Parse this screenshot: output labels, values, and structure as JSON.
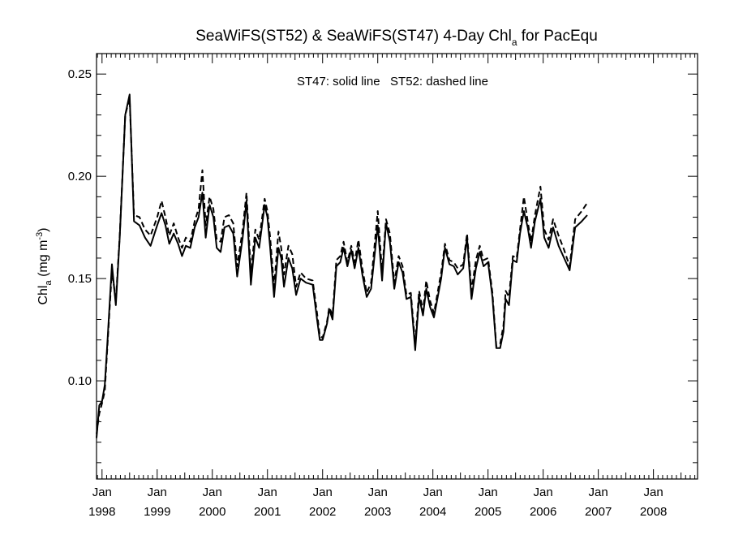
{
  "chart_data": {
    "type": "line",
    "title": {
      "main": "SeaWiFS(ST52) & SeaWiFS(ST47) 4-Day Chl",
      "sub": "a",
      "tail": " for PacEqu"
    },
    "annotation": "ST47: solid line   ST52: dashed line",
    "ylabel": {
      "main": "Chl",
      "sub": "a",
      "unit_open": " (mg m",
      "unit_sup": "-3",
      "unit_close": ")"
    },
    "xlim": [
      1997.9,
      2008.8
    ],
    "ylim": [
      0.052,
      0.26
    ],
    "grid": false,
    "x_ticks": [
      {
        "x": 1998,
        "month": "Jan",
        "year": "1998"
      },
      {
        "x": 1999,
        "month": "Jan",
        "year": "1999"
      },
      {
        "x": 2000,
        "month": "Jan",
        "year": "2000"
      },
      {
        "x": 2001,
        "month": "Jan",
        "year": "2001"
      },
      {
        "x": 2002,
        "month": "Jan",
        "year": "2002"
      },
      {
        "x": 2003,
        "month": "Jan",
        "year": "2003"
      },
      {
        "x": 2004,
        "month": "Jan",
        "year": "2004"
      },
      {
        "x": 2005,
        "month": "Jan",
        "year": "2005"
      },
      {
        "x": 2006,
        "month": "Jan",
        "year": "2006"
      },
      {
        "x": 2007,
        "month": "Jan",
        "year": "2007"
      },
      {
        "x": 2008,
        "month": "Jan",
        "year": "2008"
      }
    ],
    "y_major": [
      {
        "y": 0.1,
        "label": "0.10"
      },
      {
        "y": 0.15,
        "label": "0.15"
      },
      {
        "y": 0.2,
        "label": "0.20"
      },
      {
        "y": 0.25,
        "label": "0.25"
      }
    ],
    "y_minor": [
      0.06,
      0.07,
      0.08,
      0.09,
      0.11,
      0.12,
      0.13,
      0.14,
      0.16,
      0.17,
      0.18,
      0.19,
      0.21,
      0.22,
      0.23,
      0.24
    ],
    "series": [
      {
        "name": "ST47",
        "style": "solid",
        "points": [
          [
            1997.9,
            0.072
          ],
          [
            1997.95,
            0.088
          ],
          [
            1998.0,
            0.09
          ],
          [
            1998.05,
            0.098
          ],
          [
            1998.1,
            0.12
          ],
          [
            1998.18,
            0.157
          ],
          [
            1998.25,
            0.137
          ],
          [
            1998.32,
            0.17
          ],
          [
            1998.42,
            0.23
          ],
          [
            1998.5,
            0.24
          ],
          [
            1998.58,
            0.178
          ],
          [
            1998.68,
            0.176
          ],
          [
            1998.78,
            0.17
          ],
          [
            1998.88,
            0.166
          ],
          [
            1999.0,
            0.176
          ],
          [
            1999.08,
            0.182
          ],
          [
            1999.15,
            0.176
          ],
          [
            1999.22,
            0.167
          ],
          [
            1999.3,
            0.172
          ],
          [
            1999.38,
            0.167
          ],
          [
            1999.45,
            0.161
          ],
          [
            1999.52,
            0.166
          ],
          [
            1999.6,
            0.165
          ],
          [
            1999.68,
            0.175
          ],
          [
            1999.75,
            0.18
          ],
          [
            1999.82,
            0.192
          ],
          [
            1999.88,
            0.17
          ],
          [
            1999.95,
            0.186
          ],
          [
            2000.02,
            0.18
          ],
          [
            2000.08,
            0.165
          ],
          [
            2000.15,
            0.163
          ],
          [
            2000.22,
            0.175
          ],
          [
            2000.3,
            0.176
          ],
          [
            2000.38,
            0.172
          ],
          [
            2000.45,
            0.151
          ],
          [
            2000.55,
            0.17
          ],
          [
            2000.62,
            0.188
          ],
          [
            2000.7,
            0.147
          ],
          [
            2000.78,
            0.17
          ],
          [
            2000.85,
            0.165
          ],
          [
            2000.95,
            0.186
          ],
          [
            2001.0,
            0.18
          ],
          [
            2001.05,
            0.165
          ],
          [
            2001.12,
            0.141
          ],
          [
            2001.2,
            0.165
          ],
          [
            2001.25,
            0.16
          ],
          [
            2001.3,
            0.146
          ],
          [
            2001.38,
            0.16
          ],
          [
            2001.45,
            0.155
          ],
          [
            2001.52,
            0.142
          ],
          [
            2001.6,
            0.15
          ],
          [
            2001.7,
            0.148
          ],
          [
            2001.82,
            0.147
          ],
          [
            2001.9,
            0.13
          ],
          [
            2001.95,
            0.12
          ],
          [
            2002.0,
            0.12
          ],
          [
            2002.08,
            0.128
          ],
          [
            2002.12,
            0.135
          ],
          [
            2002.18,
            0.13
          ],
          [
            2002.25,
            0.156
          ],
          [
            2002.32,
            0.158
          ],
          [
            2002.38,
            0.165
          ],
          [
            2002.45,
            0.156
          ],
          [
            2002.52,
            0.164
          ],
          [
            2002.58,
            0.155
          ],
          [
            2002.65,
            0.165
          ],
          [
            2002.72,
            0.152
          ],
          [
            2002.8,
            0.141
          ],
          [
            2002.88,
            0.145
          ],
          [
            2003.0,
            0.176
          ],
          [
            2003.08,
            0.149
          ],
          [
            2003.15,
            0.177
          ],
          [
            2003.22,
            0.168
          ],
          [
            2003.3,
            0.145
          ],
          [
            2003.38,
            0.158
          ],
          [
            2003.45,
            0.153
          ],
          [
            2003.52,
            0.14
          ],
          [
            2003.6,
            0.141
          ],
          [
            2003.68,
            0.115
          ],
          [
            2003.75,
            0.141
          ],
          [
            2003.82,
            0.132
          ],
          [
            2003.88,
            0.145
          ],
          [
            2003.95,
            0.136
          ],
          [
            2004.02,
            0.131
          ],
          [
            2004.15,
            0.15
          ],
          [
            2004.22,
            0.165
          ],
          [
            2004.3,
            0.157
          ],
          [
            2004.38,
            0.156
          ],
          [
            2004.45,
            0.152
          ],
          [
            2004.55,
            0.155
          ],
          [
            2004.62,
            0.17
          ],
          [
            2004.7,
            0.14
          ],
          [
            2004.78,
            0.155
          ],
          [
            2004.85,
            0.163
          ],
          [
            2004.92,
            0.156
          ],
          [
            2005.0,
            0.158
          ],
          [
            2005.08,
            0.141
          ],
          [
            2005.15,
            0.116
          ],
          [
            2005.22,
            0.116
          ],
          [
            2005.28,
            0.124
          ],
          [
            2005.32,
            0.14
          ],
          [
            2005.38,
            0.137
          ],
          [
            2005.45,
            0.159
          ],
          [
            2005.52,
            0.158
          ],
          [
            2005.58,
            0.172
          ],
          [
            2005.65,
            0.183
          ],
          [
            2005.72,
            0.175
          ],
          [
            2005.78,
            0.165
          ],
          [
            2005.85,
            0.178
          ],
          [
            2005.95,
            0.189
          ],
          [
            2006.02,
            0.17
          ],
          [
            2006.1,
            0.165
          ],
          [
            2006.18,
            0.175
          ],
          [
            2006.28,
            0.166
          ],
          [
            2006.38,
            0.16
          ],
          [
            2006.48,
            0.154
          ],
          [
            2006.58,
            0.175
          ],
          [
            2006.7,
            0.178
          ],
          [
            2006.8,
            0.181
          ]
        ]
      },
      {
        "name": "ST52",
        "style": "dashed",
        "points": [
          [
            1997.9,
            0.074
          ],
          [
            1997.95,
            0.084
          ],
          [
            1998.0,
            0.089
          ],
          [
            1998.05,
            0.095
          ],
          [
            1998.1,
            0.118
          ],
          [
            1998.18,
            0.154
          ],
          [
            1998.25,
            0.139
          ],
          [
            1998.32,
            0.171
          ],
          [
            1998.42,
            0.23
          ],
          [
            1998.5,
            0.238
          ],
          [
            1998.58,
            0.181
          ],
          [
            1998.68,
            0.18
          ],
          [
            1998.78,
            0.174
          ],
          [
            1998.88,
            0.171
          ],
          [
            1999.0,
            0.18
          ],
          [
            1999.08,
            0.188
          ],
          [
            1999.15,
            0.18
          ],
          [
            1999.22,
            0.171
          ],
          [
            1999.3,
            0.177
          ],
          [
            1999.38,
            0.17
          ],
          [
            1999.45,
            0.165
          ],
          [
            1999.52,
            0.17
          ],
          [
            1999.6,
            0.168
          ],
          [
            1999.68,
            0.178
          ],
          [
            1999.75,
            0.184
          ],
          [
            1999.82,
            0.203
          ],
          [
            1999.88,
            0.176
          ],
          [
            1999.95,
            0.19
          ],
          [
            2000.02,
            0.184
          ],
          [
            2000.08,
            0.169
          ],
          [
            2000.15,
            0.168
          ],
          [
            2000.22,
            0.18
          ],
          [
            2000.3,
            0.181
          ],
          [
            2000.38,
            0.177
          ],
          [
            2000.45,
            0.156
          ],
          [
            2000.55,
            0.174
          ],
          [
            2000.62,
            0.192
          ],
          [
            2000.7,
            0.153
          ],
          [
            2000.78,
            0.174
          ],
          [
            2000.85,
            0.169
          ],
          [
            2000.95,
            0.189
          ],
          [
            2001.0,
            0.183
          ],
          [
            2001.05,
            0.17
          ],
          [
            2001.12,
            0.146
          ],
          [
            2001.2,
            0.173
          ],
          [
            2001.25,
            0.165
          ],
          [
            2001.3,
            0.152
          ],
          [
            2001.38,
            0.166
          ],
          [
            2001.45,
            0.162
          ],
          [
            2001.52,
            0.146
          ],
          [
            2001.6,
            0.153
          ],
          [
            2001.7,
            0.15
          ],
          [
            2001.82,
            0.149
          ],
          [
            2001.9,
            0.133
          ],
          [
            2001.95,
            0.122
          ],
          [
            2002.0,
            0.121
          ],
          [
            2002.08,
            0.129
          ],
          [
            2002.12,
            0.136
          ],
          [
            2002.18,
            0.132
          ],
          [
            2002.25,
            0.159
          ],
          [
            2002.32,
            0.161
          ],
          [
            2002.38,
            0.168
          ],
          [
            2002.45,
            0.158
          ],
          [
            2002.52,
            0.166
          ],
          [
            2002.58,
            0.158
          ],
          [
            2002.65,
            0.169
          ],
          [
            2002.72,
            0.155
          ],
          [
            2002.8,
            0.143
          ],
          [
            2002.88,
            0.148
          ],
          [
            2003.0,
            0.183
          ],
          [
            2003.08,
            0.153
          ],
          [
            2003.15,
            0.179
          ],
          [
            2003.22,
            0.172
          ],
          [
            2003.3,
            0.148
          ],
          [
            2003.38,
            0.161
          ],
          [
            2003.45,
            0.156
          ],
          [
            2003.52,
            0.142
          ],
          [
            2003.6,
            0.143
          ],
          [
            2003.68,
            0.118
          ],
          [
            2003.75,
            0.144
          ],
          [
            2003.82,
            0.134
          ],
          [
            2003.88,
            0.149
          ],
          [
            2003.95,
            0.139
          ],
          [
            2004.02,
            0.133
          ],
          [
            2004.15,
            0.153
          ],
          [
            2004.22,
            0.167
          ],
          [
            2004.3,
            0.159
          ],
          [
            2004.38,
            0.158
          ],
          [
            2004.45,
            0.155
          ],
          [
            2004.55,
            0.157
          ],
          [
            2004.62,
            0.172
          ],
          [
            2004.7,
            0.144
          ],
          [
            2004.78,
            0.159
          ],
          [
            2004.85,
            0.166
          ],
          [
            2004.92,
            0.159
          ],
          [
            2005.0,
            0.16
          ],
          [
            2005.08,
            0.143
          ],
          [
            2005.15,
            0.117
          ],
          [
            2005.22,
            0.118
          ],
          [
            2005.28,
            0.127
          ],
          [
            2005.32,
            0.144
          ],
          [
            2005.38,
            0.141
          ],
          [
            2005.45,
            0.161
          ],
          [
            2005.52,
            0.16
          ],
          [
            2005.58,
            0.174
          ],
          [
            2005.65,
            0.19
          ],
          [
            2005.72,
            0.178
          ],
          [
            2005.78,
            0.168
          ],
          [
            2005.85,
            0.181
          ],
          [
            2005.95,
            0.195
          ],
          [
            2006.02,
            0.174
          ],
          [
            2006.1,
            0.169
          ],
          [
            2006.18,
            0.179
          ],
          [
            2006.28,
            0.171
          ],
          [
            2006.38,
            0.164
          ],
          [
            2006.48,
            0.156
          ],
          [
            2006.58,
            0.179
          ],
          [
            2006.7,
            0.183
          ],
          [
            2006.8,
            0.187
          ]
        ]
      }
    ]
  }
}
